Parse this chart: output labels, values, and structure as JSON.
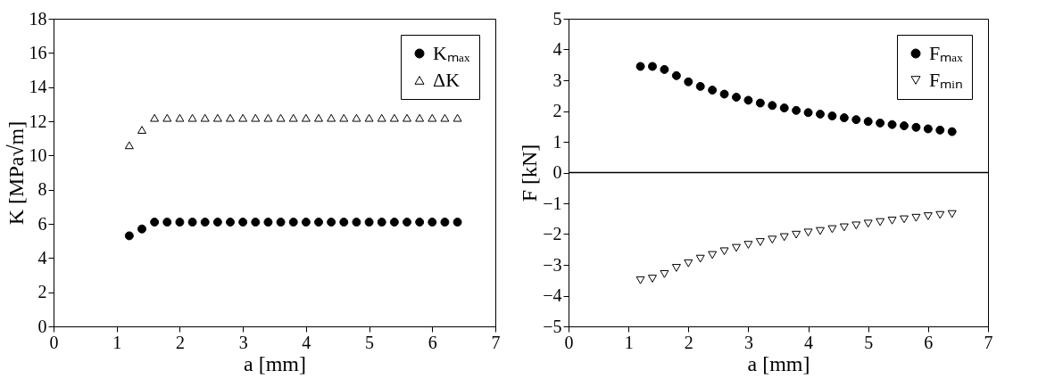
{
  "chart_data": [
    {
      "type": "scatter",
      "xlabel": "a [mm]",
      "ylabel": "K [MPa√m]",
      "xlim": [
        0,
        7
      ],
      "xticks": [
        0,
        1,
        2,
        3,
        4,
        5,
        6,
        7
      ],
      "ylim": [
        0,
        18
      ],
      "yticks": [
        0,
        2,
        4,
        6,
        8,
        10,
        12,
        14,
        16,
        18
      ],
      "legend": "top right",
      "x": [
        1.2,
        1.4,
        1.6,
        1.8,
        2.0,
        2.2,
        2.4,
        2.6,
        2.8,
        3.0,
        3.2,
        3.4,
        3.6,
        3.8,
        4.0,
        4.2,
        4.4,
        4.6,
        4.8,
        5.0,
        5.2,
        5.4,
        5.6,
        5.8,
        6.0,
        6.2,
        6.4
      ],
      "series": [
        {
          "name": "Kₘₐₓ",
          "color": "#000000",
          "marker": "circle",
          "values": [
            5.3,
            5.7,
            6.1,
            6.1,
            6.1,
            6.1,
            6.1,
            6.1,
            6.1,
            6.1,
            6.1,
            6.1,
            6.1,
            6.1,
            6.1,
            6.1,
            6.1,
            6.1,
            6.1,
            6.1,
            6.1,
            6.1,
            6.1,
            6.1,
            6.1,
            6.1,
            6.1
          ]
        },
        {
          "name": "ΔK",
          "color": "#000000",
          "marker": "triangle",
          "values": [
            10.6,
            11.5,
            12.2,
            12.2,
            12.2,
            12.2,
            12.2,
            12.2,
            12.2,
            12.2,
            12.2,
            12.2,
            12.2,
            12.2,
            12.2,
            12.2,
            12.2,
            12.2,
            12.2,
            12.2,
            12.2,
            12.2,
            12.2,
            12.2,
            12.2,
            12.2,
            12.2
          ]
        }
      ]
    },
    {
      "type": "scatter",
      "xlabel": "a [mm]",
      "ylabel": "F [kN]",
      "xlim": [
        0,
        7
      ],
      "xticks": [
        0,
        1,
        2,
        3,
        4,
        5,
        6,
        7
      ],
      "ylim": [
        -5,
        5
      ],
      "yticks": [
        -5,
        -4,
        -3,
        -2,
        -1,
        0,
        1,
        2,
        3,
        4,
        5
      ],
      "legend": "top right",
      "x": [
        1.2,
        1.4,
        1.6,
        1.8,
        2.0,
        2.2,
        2.4,
        2.6,
        2.8,
        3.0,
        3.2,
        3.4,
        3.6,
        3.8,
        4.0,
        4.2,
        4.4,
        4.6,
        4.8,
        5.0,
        5.2,
        5.4,
        5.6,
        5.8,
        6.0,
        6.2,
        6.4
      ],
      "ref_lines": [
        {
          "axis": "y",
          "value": 0,
          "color": "#000000"
        }
      ],
      "series": [
        {
          "name": "Fₘₐₓ",
          "color": "#000000",
          "marker": "circle",
          "values": [
            3.45,
            3.45,
            3.35,
            3.15,
            2.95,
            2.8,
            2.68,
            2.55,
            2.45,
            2.35,
            2.26,
            2.18,
            2.1,
            2.02,
            1.95,
            1.9,
            1.84,
            1.78,
            1.72,
            1.66,
            1.61,
            1.56,
            1.52,
            1.47,
            1.42,
            1.38,
            1.33
          ]
        },
        {
          "name": "Fₘᵢₙ",
          "color": "#000000",
          "marker": "triangle-down",
          "values": [
            -3.5,
            -3.45,
            -3.3,
            -3.1,
            -2.95,
            -2.8,
            -2.68,
            -2.56,
            -2.45,
            -2.35,
            -2.26,
            -2.18,
            -2.1,
            -2.02,
            -1.95,
            -1.9,
            -1.84,
            -1.78,
            -1.72,
            -1.66,
            -1.61,
            -1.56,
            -1.52,
            -1.47,
            -1.42,
            -1.38,
            -1.35
          ]
        }
      ]
    }
  ]
}
